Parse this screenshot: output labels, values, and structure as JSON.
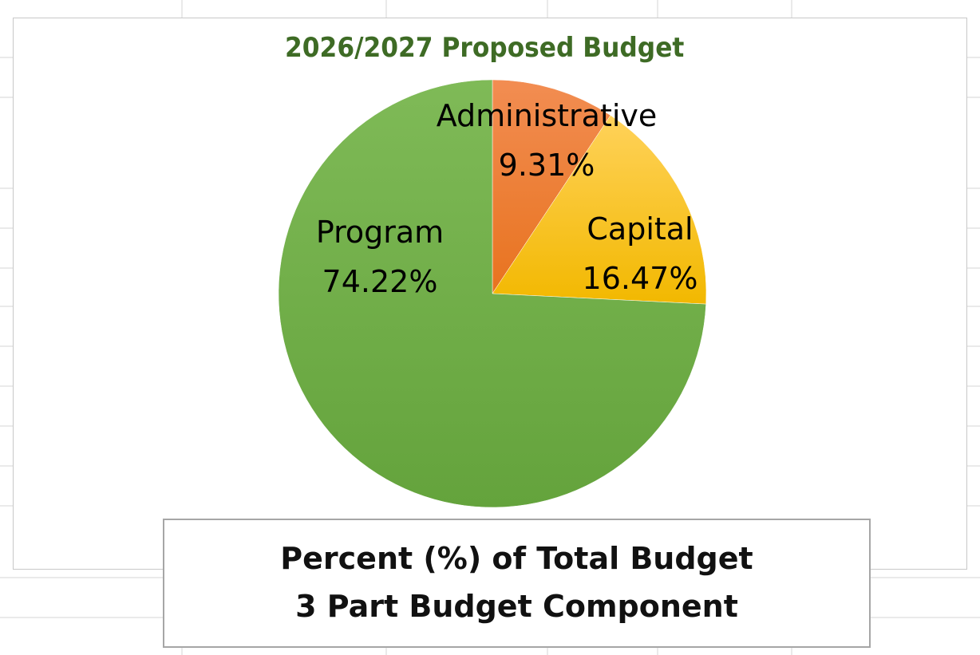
{
  "chart_data": {
    "type": "pie",
    "title": "2026/2027 Proposed Budget",
    "slices": [
      {
        "label": "Administrative",
        "value": 9.31,
        "value_label": "9.31%",
        "color": "#ED7D31"
      },
      {
        "label": "Capital",
        "value": 16.47,
        "value_label": "16.47%",
        "color": "#FFC000"
      },
      {
        "label": "Program",
        "value": 74.22,
        "value_label": "74.22%",
        "color": "#70AD47"
      }
    ],
    "start_angle": "12 o'clock, clockwise",
    "legend": "none (data labels on slices)"
  },
  "footer": {
    "line1": "Percent (%) of Total Budget",
    "line2": "3 Part Budget Component"
  },
  "colors": {
    "title": "#3E6B25",
    "background": "#FFFFFF",
    "gridlines": "#D4D4D4"
  }
}
